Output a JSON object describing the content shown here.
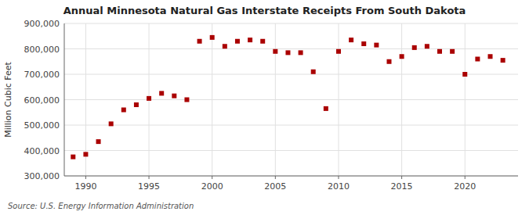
{
  "chart_data": {
    "type": "scatter",
    "title": "Annual Minnesota Natural Gas Interstate Receipts From South Dakota",
    "y_label": "Million Cubic Feet",
    "annotations": [
      "Source: U.S. Energy Information Administration"
    ],
    "x": [
      1989,
      1990,
      1991,
      1992,
      1993,
      1994,
      1995,
      1996,
      1997,
      1998,
      1999,
      2000,
      2001,
      2002,
      2003,
      2004,
      2005,
      2006,
      2007,
      2008,
      2009,
      2010,
      2011,
      2012,
      2013,
      2014,
      2015,
      2016,
      2017,
      2018,
      2019,
      2020,
      2021,
      2022,
      2023
    ],
    "values": [
      375000,
      385000,
      435000,
      505000,
      560000,
      580000,
      605000,
      625000,
      615000,
      600000,
      830000,
      845000,
      810000,
      830000,
      835000,
      830000,
      790000,
      785000,
      785000,
      710000,
      565000,
      790000,
      835000,
      820000,
      815000,
      750000,
      770000,
      805000,
      810000,
      790000,
      790000,
      700000,
      760000,
      770000,
      755000
    ],
    "color": "#aa0000",
    "marker": "square",
    "grid": true,
    "xlim": [
      1988.3,
      2024.2
    ],
    "xticks": [
      1990,
      1995,
      2000,
      2005,
      2010,
      2015,
      2020
    ],
    "ylim": [
      300000,
      900000
    ],
    "yticks": [
      {
        "value": 300000,
        "label": "300,000"
      },
      {
        "value": 400000,
        "label": "400,000"
      },
      {
        "value": 500000,
        "label": "500,000"
      },
      {
        "value": 600000,
        "label": "600,000"
      },
      {
        "value": 700000,
        "label": "700,000"
      },
      {
        "value": 800000,
        "label": "800,000"
      },
      {
        "value": 900000,
        "label": "900,000"
      }
    ]
  }
}
